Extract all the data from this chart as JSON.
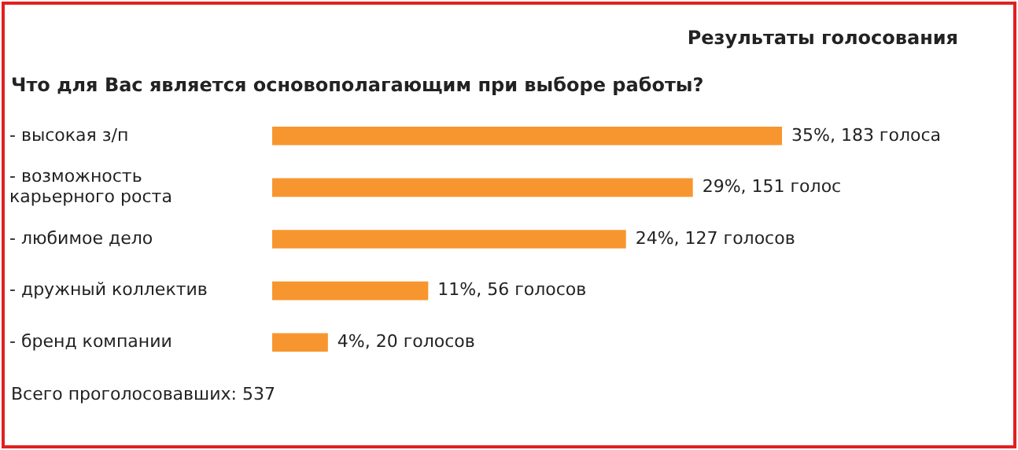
{
  "chart_data": {
    "type": "bar",
    "orientation": "horizontal",
    "title": "Результаты голосования",
    "subtitle": "Что для Вас является основополагающим при выборе работы?",
    "categories": [
      "- высокая з/п",
      "- возможность карьерного роста",
      "- любимое дело",
      "- дружный коллектив",
      "- бренд компании"
    ],
    "values": [
      183,
      151,
      127,
      56,
      20
    ],
    "value_labels": [
      "35%, 183 голоса",
      "29%, 151 голос",
      "24%, 127 голосов",
      "11%, 56 голосов",
      "4%, 20 голосов"
    ],
    "color": "#f7962f",
    "grid": false,
    "legend": false,
    "tick_labels": "y",
    "annotations": [
      "Всего проголосовавших: 537"
    ]
  }
}
